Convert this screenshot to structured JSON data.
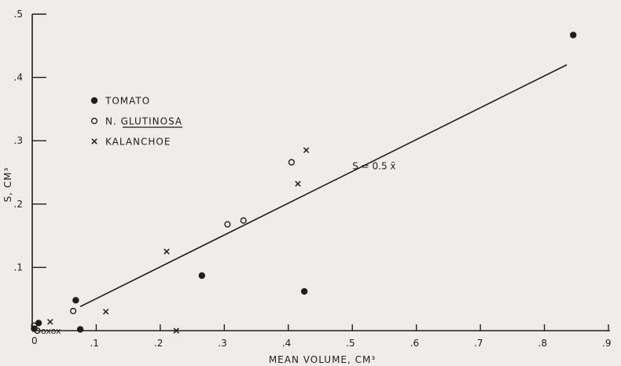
{
  "chart_data": {
    "type": "scatter",
    "title": "",
    "xlabel": "MEAN VOLUME, CM³",
    "ylabel": "S, CM³",
    "xlim": [
      0,
      0.9
    ],
    "ylim": [
      0,
      0.5
    ],
    "x_ticks": [
      ".1",
      ".2",
      ".3",
      ".4",
      ".5",
      ".6",
      ".7",
      ".8",
      ".9"
    ],
    "y_ticks": [
      ".1",
      ".2",
      ".3",
      ".4",
      ".5"
    ],
    "origin_label": "0",
    "grid": false,
    "legend_position": "top-left",
    "series": [
      {
        "name": "TOMATO",
        "marker": "filled-circle",
        "points": [
          [
            0.01,
            0.012
          ],
          [
            0.003,
            0.003
          ],
          [
            0.068,
            0.048
          ],
          [
            0.075,
            0.002
          ],
          [
            0.265,
            0.087
          ],
          [
            0.425,
            0.062
          ],
          [
            0.845,
            0.467
          ]
        ]
      },
      {
        "name": "N. GLUTINOSA",
        "marker": "open-circle",
        "points": [
          [
            0.003,
            0.008
          ],
          [
            0.008,
            0.0
          ],
          [
            0.064,
            0.031
          ],
          [
            0.305,
            0.168
          ],
          [
            0.33,
            0.174
          ],
          [
            0.405,
            0.266
          ]
        ]
      },
      {
        "name": "KALANCHOE",
        "marker": "x",
        "points": [
          [
            0.028,
            0.014
          ],
          [
            0.115,
            0.03
          ],
          [
            0.21,
            0.125
          ],
          [
            0.225,
            0.0
          ],
          [
            0.415,
            0.232
          ],
          [
            0.428,
            0.285
          ]
        ]
      }
    ],
    "cluster_label": "oxox",
    "fit_line": {
      "label": "S = 0.5 x̄",
      "x": [
        0.075,
        0.835
      ],
      "y": [
        0.038,
        0.42
      ]
    }
  }
}
